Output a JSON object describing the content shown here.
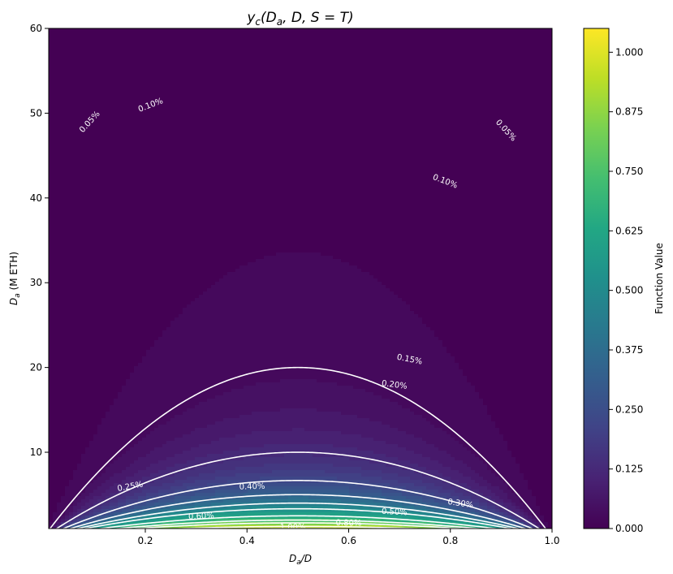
{
  "chart_data": {
    "type": "heatmap",
    "title_main": "y",
    "title_sub": "c",
    "title_rest": "(D",
    "title_sub2": "a",
    "title_tail": ", D, S = T)",
    "xlabel_main": "D",
    "xlabel_sub": "a",
    "xlabel_tail": "/D",
    "ylabel_main": "D",
    "ylabel_sub": "a",
    "ylabel_tail": " (M ETH)",
    "x_range": [
      0.01,
      1.0
    ],
    "y_range": [
      1,
      60
    ],
    "x_ticks": [
      {
        "value": 0.2,
        "label": "0.2"
      },
      {
        "value": 0.4,
        "label": "0.4"
      },
      {
        "value": 0.6,
        "label": "0.6"
      },
      {
        "value": 0.8,
        "label": "0.8"
      },
      {
        "value": 1.0,
        "label": "1.0"
      }
    ],
    "y_ticks": [
      {
        "value": 10,
        "label": "10"
      },
      {
        "value": 20,
        "label": "20"
      },
      {
        "value": 30,
        "label": "30"
      },
      {
        "value": 40,
        "label": "40"
      },
      {
        "value": 50,
        "label": "50"
      },
      {
        "value": 60,
        "label": "60"
      }
    ],
    "colorbar": {
      "label": "Function Value",
      "range": [
        0,
        1.05
      ],
      "colormap": "viridis",
      "ticks": [
        {
          "value": 0.0,
          "label": "0.000"
        },
        {
          "value": 0.125,
          "label": "0.125"
        },
        {
          "value": 0.25,
          "label": "0.250"
        },
        {
          "value": 0.375,
          "label": "0.375"
        },
        {
          "value": 0.5,
          "label": "0.500"
        },
        {
          "value": 0.625,
          "label": "0.625"
        },
        {
          "value": 0.75,
          "label": "0.750"
        },
        {
          "value": 0.875,
          "label": "0.875"
        },
        {
          "value": 1.0,
          "label": "1.000"
        }
      ]
    },
    "contours": [
      {
        "level": 0.0005,
        "label": "0.05%",
        "label_points": [
          {
            "x": 0.09,
            "y": 49
          },
          {
            "x": 0.91,
            "y": 48
          }
        ]
      },
      {
        "level": 0.001,
        "label": "0.10%",
        "label_points": [
          {
            "x": 0.21,
            "y": 51
          },
          {
            "x": 0.79,
            "y": 42
          }
        ]
      },
      {
        "level": 0.0015,
        "label": "0.15%",
        "label_points": [
          {
            "x": 0.72,
            "y": 21
          }
        ]
      },
      {
        "level": 0.002,
        "label": "0.20%",
        "label_points": [
          {
            "x": 0.69,
            "y": 18
          }
        ]
      },
      {
        "level": 0.0025,
        "label": "0.25%",
        "label_points": [
          {
            "x": 0.17,
            "y": 6
          }
        ]
      },
      {
        "level": 0.003,
        "label": "0.30%",
        "label_points": [
          {
            "x": 0.82,
            "y": 4
          }
        ]
      },
      {
        "level": 0.004,
        "label": "0.40%",
        "label_points": [
          {
            "x": 0.41,
            "y": 6
          }
        ]
      },
      {
        "level": 0.005,
        "label": "0.50%",
        "label_points": [
          {
            "x": 0.69,
            "y": 3
          }
        ]
      },
      {
        "level": 0.006,
        "label": "0.60%",
        "label_points": [
          {
            "x": 0.31,
            "y": 2.5
          }
        ]
      },
      {
        "level": 0.008,
        "label": "0.80%",
        "label_points": [
          {
            "x": 0.6,
            "y": 1.7
          }
        ]
      },
      {
        "level": 0.01,
        "label": "1.00%",
        "label_points": [
          {
            "x": 0.49,
            "y": 1.2
          }
        ]
      }
    ]
  }
}
